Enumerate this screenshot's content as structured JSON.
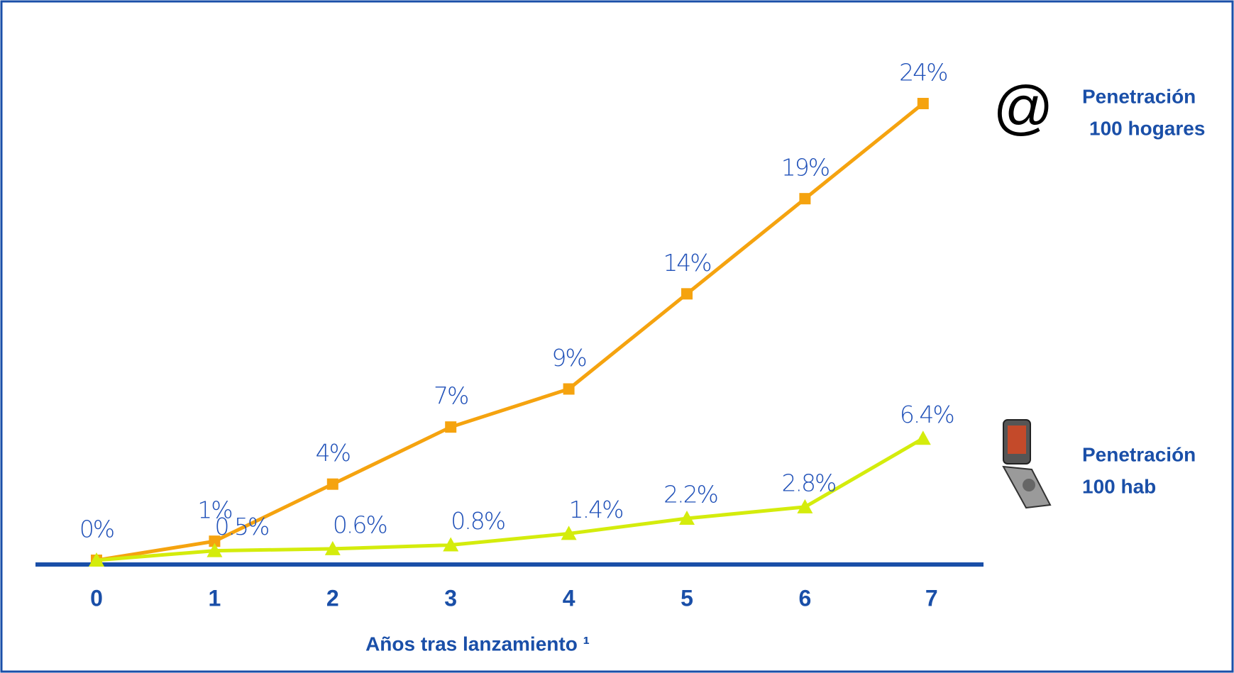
{
  "chart_data": {
    "type": "line",
    "x_label": "Años tras lanzamiento ¹",
    "categories": [
      "0",
      "1",
      "2",
      "3",
      "4",
      "5",
      "6",
      "7"
    ],
    "ylim": [
      0,
      24
    ],
    "series": [
      {
        "name": [
          "Penetración",
          "100 hogares"
        ],
        "icon": "@",
        "color": "#f5a30f",
        "marker": "square",
        "values": [
          0,
          1,
          4,
          7,
          9,
          14,
          19,
          24
        ],
        "value_labels": [
          "0%",
          "1%",
          "4%",
          "7%",
          "9%",
          "14%",
          "19%",
          "24%"
        ]
      },
      {
        "name": [
          "Penetración",
          "100 hab"
        ],
        "color": "#d4ec0c",
        "marker": "triangle",
        "values": [
          0,
          0.5,
          0.6,
          0.8,
          1.4,
          2.2,
          2.8,
          6.4
        ],
        "value_labels": [
          null,
          "0.5%",
          "0.6%",
          "0.8%",
          "1.4%",
          "2.2%",
          "2.8%",
          "6.4%"
        ]
      }
    ]
  }
}
